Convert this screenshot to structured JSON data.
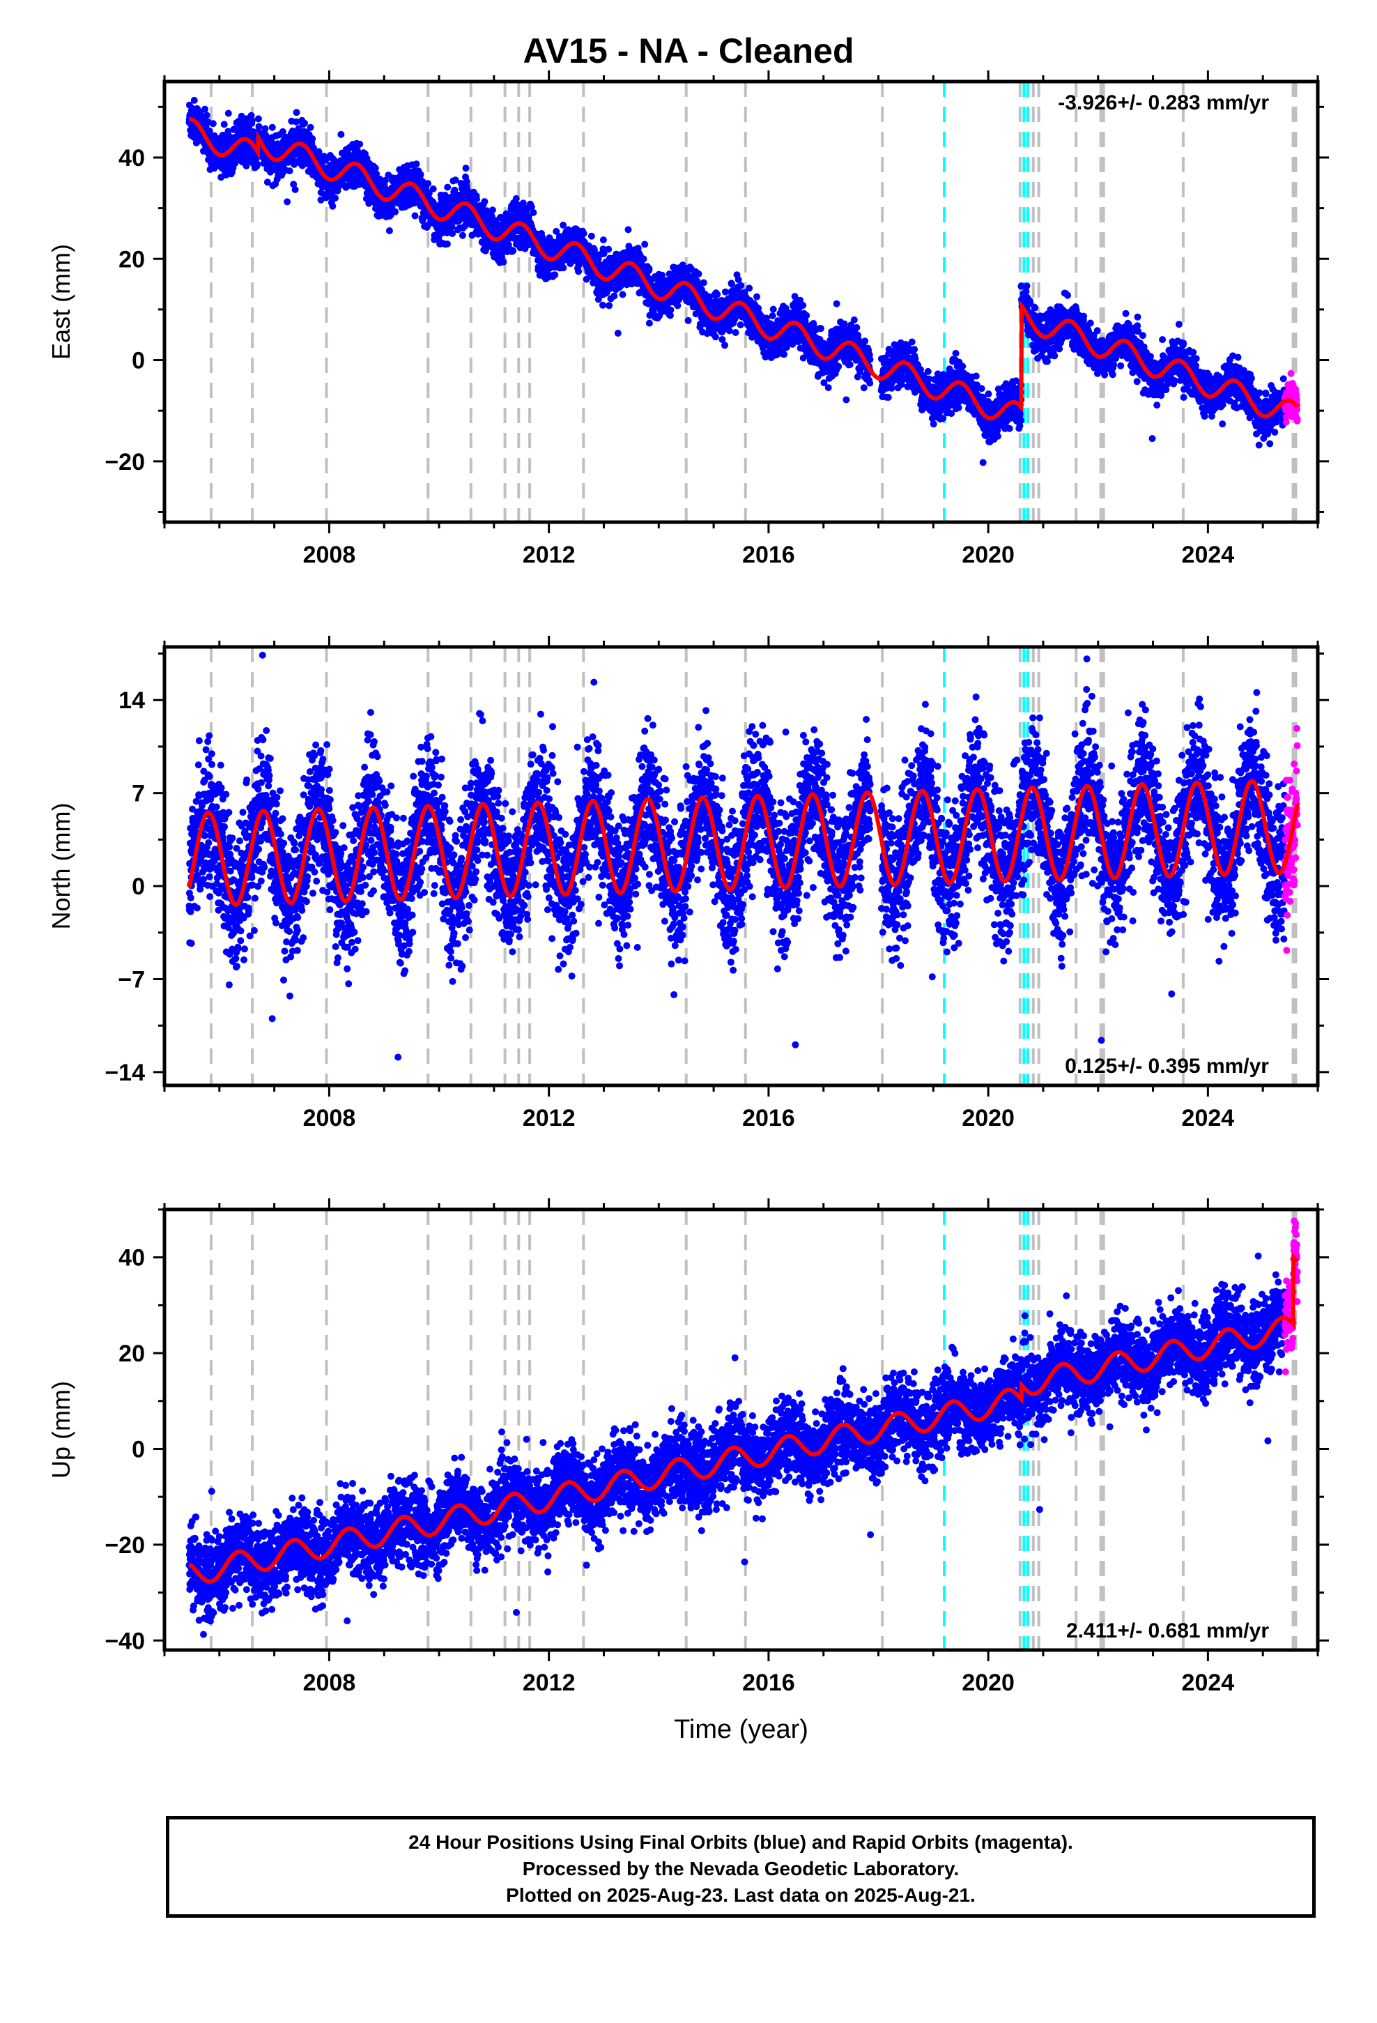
{
  "title": "AV15  - NA - Cleaned",
  "footer": {
    "line1": "24 Hour Positions Using Final Orbits (blue) and Rapid Orbits (magenta).",
    "line2": "Processed by the Nevada Geodetic Laboratory.",
    "line3": "Plotted on 2025-Aug-23. Last data on 2025-Aug-21."
  },
  "colors": {
    "final_points": "#0000ff",
    "rapid_points": "#ff00ff",
    "model_line": "#ff0000",
    "event_gray": "#c0c0c0",
    "event_cyan": "#00ffff"
  },
  "chart_data": [
    {
      "type": "scatter",
      "panel": "east",
      "ylabel": "East (mm)",
      "xlabel": "",
      "xlim": [
        2005.0,
        2026.0
      ],
      "ylim": [
        -32,
        55
      ],
      "xticks": [
        2008,
        2012,
        2016,
        2020,
        2024
      ],
      "yticks": [
        -20,
        0,
        20,
        40
      ],
      "rate_label": "-3.926+/- 0.283 mm/yr",
      "rate_position": "top-right",
      "model": {
        "rate": -3.926,
        "offset_at_2005_5": 45,
        "annual_amplitude": 2.5,
        "annual_phase": 0.25,
        "steps": [
          {
            "t": 2006.7,
            "dy": 3
          },
          {
            "t": 2020.6,
            "dy": 20
          }
        ]
      },
      "scatter_sd": 2.0,
      "x_start": 2005.45,
      "x_end": 2025.63,
      "rapid_start": 2025.4
    },
    {
      "type": "scatter",
      "panel": "north",
      "ylabel": "North (mm)",
      "xlabel": "",
      "xlim": [
        2005.0,
        2026.0
      ],
      "ylim": [
        -15,
        18
      ],
      "xticks": [
        2008,
        2012,
        2016,
        2020,
        2024
      ],
      "yticks": [
        -14,
        -7,
        0,
        7,
        14
      ],
      "rate_label": "0.125+/- 0.395 mm/yr",
      "rate_position": "bottom-right",
      "model": {
        "rate": 0.125,
        "offset_at_2005_5": 2.0,
        "annual_amplitude": 3.5,
        "annual_phase": 0.55,
        "steps": []
      },
      "scatter_sd": 2.5,
      "x_start": 2005.45,
      "x_end": 2025.63,
      "rapid_start": 2025.4
    },
    {
      "type": "scatter",
      "panel": "up",
      "ylabel": "Up (mm)",
      "xlabel": "Time (year)",
      "xlim": [
        2005.0,
        2026.0
      ],
      "ylim": [
        -42,
        50
      ],
      "xticks": [
        2008,
        2012,
        2016,
        2020,
        2024
      ],
      "yticks": [
        -40,
        -20,
        0,
        20,
        40
      ],
      "rate_label": "2.411+/- 0.681 mm/yr",
      "rate_position": "bottom-right",
      "model": {
        "rate": 2.411,
        "offset_at_2005_5": -26,
        "annual_amplitude": 2.5,
        "annual_phase": 0.1,
        "steps": [
          {
            "t": 2020.6,
            "dy": 3
          },
          {
            "t": 2025.55,
            "dy": 14
          }
        ]
      },
      "scatter_sd": 4.0,
      "x_start": 2005.45,
      "x_end": 2025.63,
      "rapid_start": 2025.4
    }
  ],
  "events": {
    "gray": [
      2005.85,
      2006.6,
      2007.95,
      2009.8,
      2010.58,
      2011.2,
      2011.45,
      2011.65,
      2012.63,
      2014.5,
      2015.58,
      2018.07,
      2020.58,
      2020.82,
      2020.92,
      2021.6,
      2022.05,
      2022.1,
      2023.55,
      2025.55,
      2025.6
    ],
    "cyan": [
      2019.2,
      2020.65,
      2020.72
    ]
  }
}
